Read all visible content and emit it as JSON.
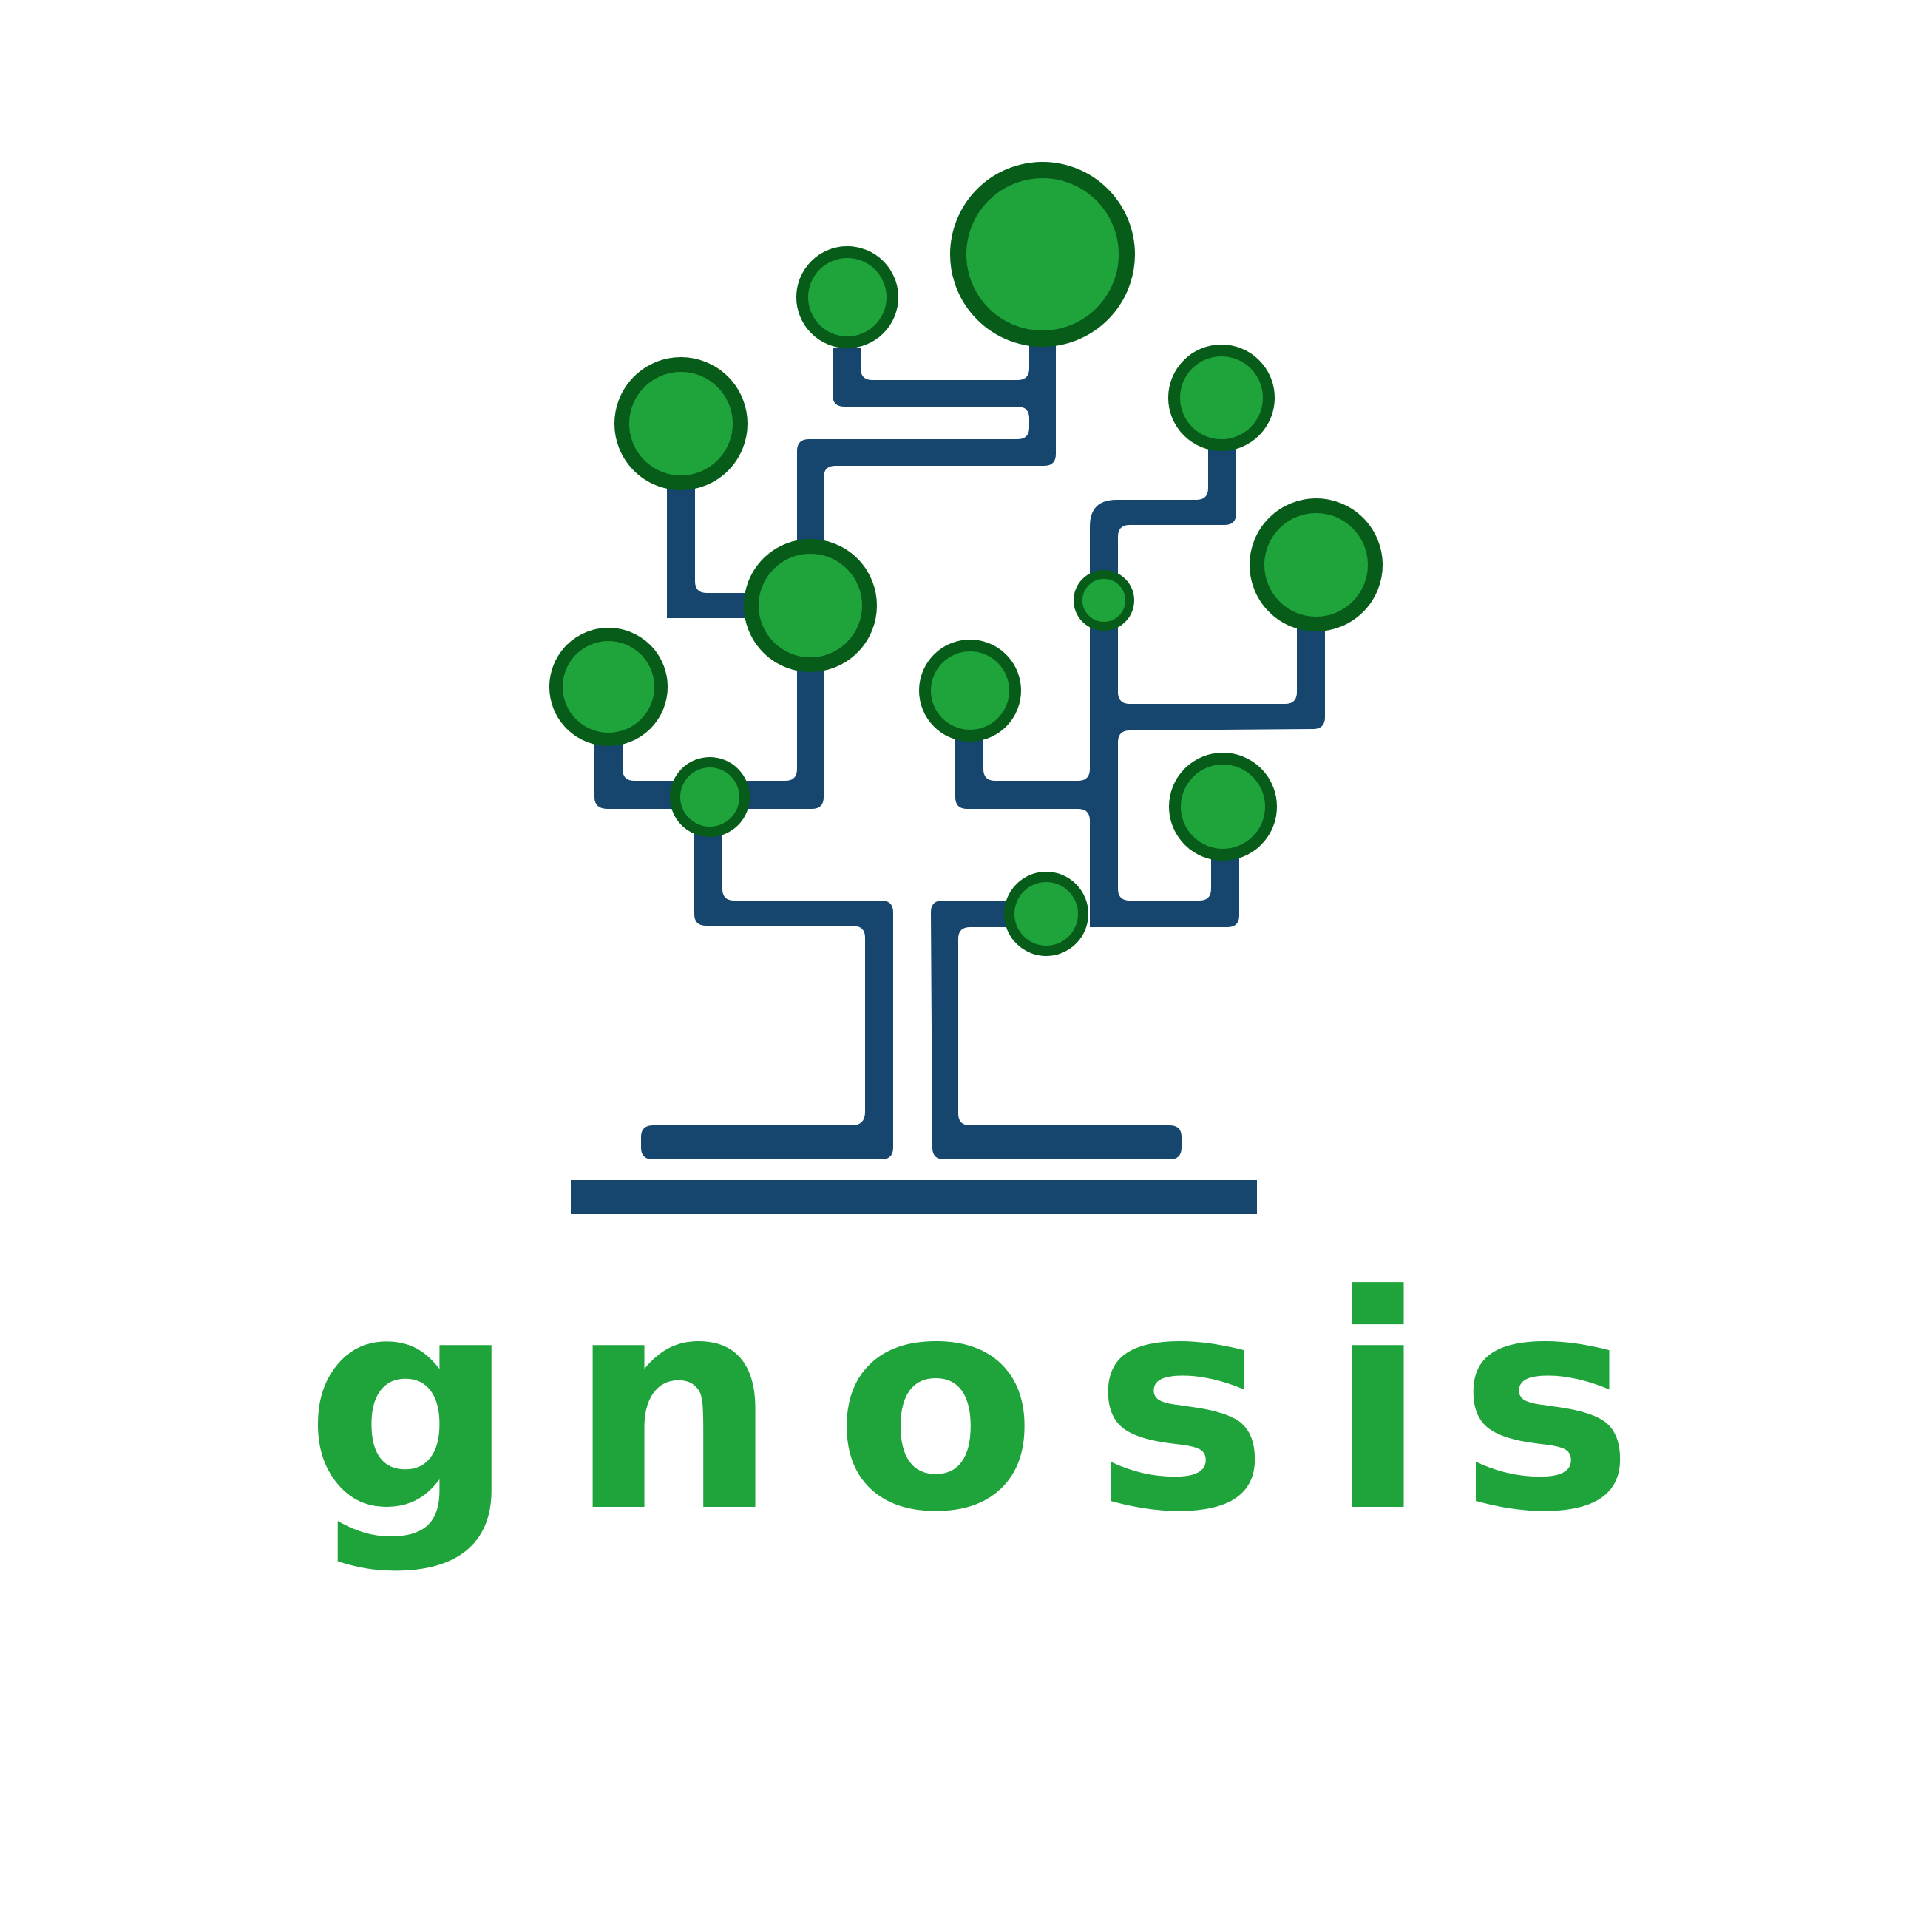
{
  "brand": {
    "name": "gnosis",
    "letters": [
      "g",
      "n",
      "o",
      "s",
      "i",
      "s"
    ]
  },
  "logo": {
    "description_icon": "circuit-tree-icon"
  },
  "colors": {
    "background": "#ffffff",
    "branch": "#16466e",
    "leaf_fill": "#1ea43a",
    "leaf_stroke": "#075c19",
    "wordmark": "#1ea43a"
  }
}
